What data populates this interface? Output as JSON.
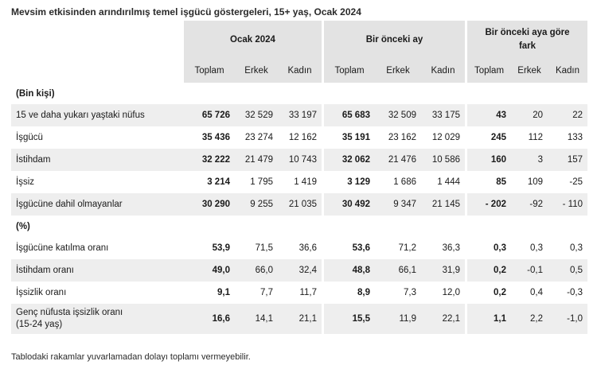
{
  "title": "Mevsim etkisinden arındırılmış temel işgücü göstergeleri, 15+ yaş, Ocak 2024",
  "groups": [
    "Ocak 2024",
    "Bir önceki ay",
    "Bir önceki aya göre fark"
  ],
  "subheaders": [
    "Toplam",
    "Erkek",
    "Kadın",
    "Toplam",
    "Erkek",
    "Kadın",
    "Toplam",
    "Erkek",
    "Kadın"
  ],
  "section1": "(Bin kişi)",
  "section2": "(%)",
  "rows1": [
    {
      "label": "15 ve daha yukarı yaştaki nüfus",
      "v": [
        "65 726",
        "32 529",
        "33 197",
        "65 683",
        "32 509",
        "33 175",
        "43",
        "20",
        "22"
      ]
    },
    {
      "label": "İşgücü",
      "v": [
        "35 436",
        "23 274",
        "12 162",
        "35 191",
        "23 162",
        "12 029",
        "245",
        "112",
        "133"
      ]
    },
    {
      "label": "İstihdam",
      "v": [
        "32 222",
        "21 479",
        "10 743",
        "32 062",
        "21 476",
        "10 586",
        "160",
        "3",
        "157"
      ]
    },
    {
      "label": "İşsiz",
      "v": [
        "3 214",
        "1 795",
        "1 419",
        "3 129",
        "1 686",
        "1 444",
        "85",
        "109",
        "-25"
      ]
    },
    {
      "label": "İşgücüne dahil olmayanlar",
      "v": [
        "30 290",
        "9 255",
        "21 035",
        "30 492",
        "9 347",
        "21 145",
        "- 202",
        "-92",
        "- 110"
      ]
    }
  ],
  "rows2": [
    {
      "label": "İşgücüne katılma oranı",
      "v": [
        "53,9",
        "71,5",
        "36,6",
        "53,6",
        "71,2",
        "36,3",
        "0,3",
        "0,3",
        "0,3"
      ]
    },
    {
      "label": "İstihdam oranı",
      "v": [
        "49,0",
        "66,0",
        "32,4",
        "48,8",
        "66,1",
        "31,9",
        "0,2",
        "-0,1",
        "0,5"
      ]
    },
    {
      "label": "İşsizlik oranı",
      "v": [
        "9,1",
        "7,7",
        "11,7",
        "8,9",
        "7,3",
        "12,0",
        "0,2",
        "0,4",
        "-0,3"
      ]
    },
    {
      "label": "Genç nüfusta işsizlik oranı",
      "label2": "(15-24 yaş)",
      "v": [
        "16,6",
        "14,1",
        "21,1",
        "15,5",
        "11,9",
        "22,1",
        "1,1",
        "2,2",
        "-1,0"
      ]
    }
  ],
  "footnote": "Tablodaki rakamlar yuvarlamadan dolayı toplamı vermeyebilir."
}
